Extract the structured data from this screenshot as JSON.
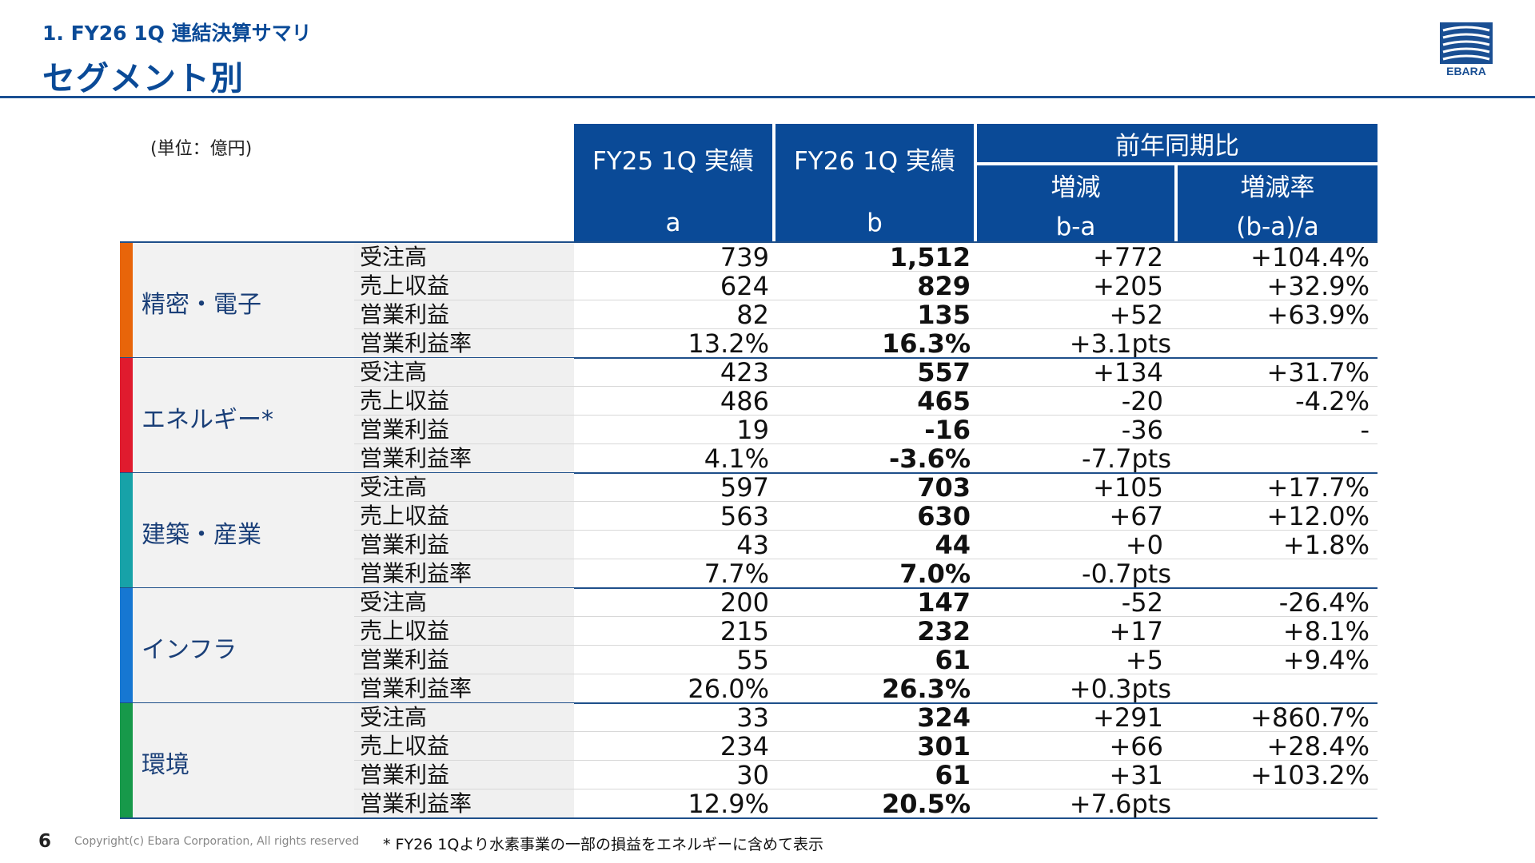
{
  "header": {
    "subtitle": "1. FY26 1Q 連結決算サマリ",
    "title": "セグメント別",
    "logo_text": "EBARA"
  },
  "unit": "(単位：億円)",
  "columns": {
    "fy25": "FY25 1Q 実績",
    "fy25_sub": "a",
    "fy26": "FY26 1Q 実績",
    "fy26_sub": "b",
    "yoy": "前年同期比",
    "diff": "増減",
    "diff_sub": "b-a",
    "rate": "増減率",
    "rate_sub": "(b-a)/a"
  },
  "segments": [
    {
      "name": "精密・電子",
      "color": "#e8650a",
      "rows": [
        {
          "label": "受注高",
          "a": "739",
          "b": "1,512",
          "diff": "+772",
          "rate": "+104.4%"
        },
        {
          "label": "売上収益",
          "a": "624",
          "b": "829",
          "diff": "+205",
          "rate": "+32.9%"
        },
        {
          "label": "営業利益",
          "a": "82",
          "b": "135",
          "diff": "+52",
          "rate": "+63.9%"
        },
        {
          "label": "営業利益率",
          "a": "13.2%",
          "b": "16.3%",
          "diff": "+3.1pts",
          "rate": ""
        }
      ]
    },
    {
      "name": "エネルギー*",
      "color": "#e01b2e",
      "rows": [
        {
          "label": "受注高",
          "a": "423",
          "b": "557",
          "diff": "+134",
          "rate": "+31.7%"
        },
        {
          "label": "売上収益",
          "a": "486",
          "b": "465",
          "diff": "-20",
          "rate": "-4.2%"
        },
        {
          "label": "営業利益",
          "a": "19",
          "b": "-16",
          "diff": "-36",
          "rate": "-"
        },
        {
          "label": "営業利益率",
          "a": "4.1%",
          "b": "-3.6%",
          "diff": "-7.7pts",
          "rate": ""
        }
      ]
    },
    {
      "name": "建築・産業",
      "color": "#17a2a8",
      "rows": [
        {
          "label": "受注高",
          "a": "597",
          "b": "703",
          "diff": "+105",
          "rate": "+17.7%"
        },
        {
          "label": "売上収益",
          "a": "563",
          "b": "630",
          "diff": "+67",
          "rate": "+12.0%"
        },
        {
          "label": "営業利益",
          "a": "43",
          "b": "44",
          "diff": "+0",
          "rate": "+1.8%"
        },
        {
          "label": "営業利益率",
          "a": "7.7%",
          "b": "7.0%",
          "diff": "-0.7pts",
          "rate": ""
        }
      ]
    },
    {
      "name": "インフラ",
      "color": "#1677d2",
      "rows": [
        {
          "label": "受注高",
          "a": "200",
          "b": "147",
          "diff": "-52",
          "rate": "-26.4%"
        },
        {
          "label": "売上収益",
          "a": "215",
          "b": "232",
          "diff": "+17",
          "rate": "+8.1%"
        },
        {
          "label": "営業利益",
          "a": "55",
          "b": "61",
          "diff": "+5",
          "rate": "+9.4%"
        },
        {
          "label": "営業利益率",
          "a": "26.0%",
          "b": "26.3%",
          "diff": "+0.3pts",
          "rate": ""
        }
      ]
    },
    {
      "name": "環境",
      "color": "#17994a",
      "rows": [
        {
          "label": "受注高",
          "a": "33",
          "b": "324",
          "diff": "+291",
          "rate": "+860.7%"
        },
        {
          "label": "売上収益",
          "a": "234",
          "b": "301",
          "diff": "+66",
          "rate": "+28.4%"
        },
        {
          "label": "営業利益",
          "a": "30",
          "b": "61",
          "diff": "+31",
          "rate": "+103.2%"
        },
        {
          "label": "営業利益率",
          "a": "12.9%",
          "b": "20.5%",
          "diff": "+7.6pts",
          "rate": ""
        }
      ]
    }
  ],
  "footer": {
    "page": "6",
    "copyright": "Copyright(c) Ebara Corporation, All rights reserved",
    "note": "* FY26 1Qより水素事業の一部の損益をエネルギーに含めて表示"
  }
}
